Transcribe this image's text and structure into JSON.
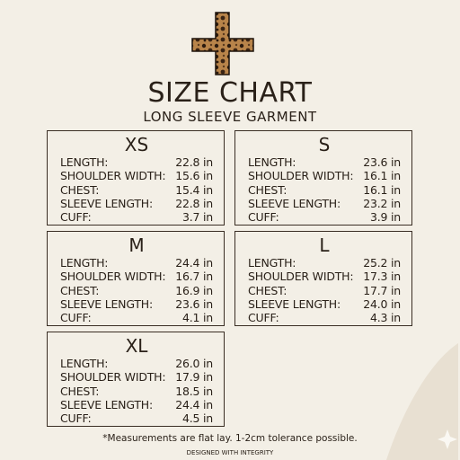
{
  "header": {
    "title": "SIZE CHART",
    "subtitle": "LONG SLEEVE GARMENT"
  },
  "sizes": [
    {
      "name": "XS",
      "rows": [
        {
          "label": "LENGTH:",
          "value": "22.8 in"
        },
        {
          "label": "SHOULDER WIDTH:",
          "value": "15.6 in"
        },
        {
          "label": "CHEST:",
          "value": "15.4 in"
        },
        {
          "label": "SLEEVE LENGTH:",
          "value": "22.8 in"
        },
        {
          "label": "CUFF:",
          "value": "3.7 in"
        }
      ]
    },
    {
      "name": "S",
      "rows": [
        {
          "label": "LENGTH:",
          "value": "23.6 in"
        },
        {
          "label": "SHOULDER WIDTH:",
          "value": "16.1 in"
        },
        {
          "label": "CHEST:",
          "value": "16.1 in"
        },
        {
          "label": "SLEEVE LENGTH:",
          "value": "23.2 in"
        },
        {
          "label": "CUFF:",
          "value": "3.9 in"
        }
      ]
    },
    {
      "name": "M",
      "rows": [
        {
          "label": "LENGTH:",
          "value": "24.4 in"
        },
        {
          "label": "SHOULDER WIDTH:",
          "value": "16.7 in"
        },
        {
          "label": "CHEST:",
          "value": "16.9 in"
        },
        {
          "label": "SLEEVE LENGTH:",
          "value": "23.6 in"
        },
        {
          "label": "CUFF:",
          "value": "4.1 in"
        }
      ]
    },
    {
      "name": "L",
      "rows": [
        {
          "label": "LENGTH:",
          "value": "25.2 in"
        },
        {
          "label": "SHOULDER WIDTH:",
          "value": "17.3 in"
        },
        {
          "label": "CHEST:",
          "value": "17.7 in"
        },
        {
          "label": "SLEEVE LENGTH:",
          "value": "24.0 in"
        },
        {
          "label": "CUFF:",
          "value": "4.3 in"
        }
      ]
    },
    {
      "name": "XL",
      "rows": [
        {
          "label": "LENGTH:",
          "value": "26.0 in"
        },
        {
          "label": "SHOULDER WIDTH:",
          "value": "17.9 in"
        },
        {
          "label": "CHEST:",
          "value": "18.5 in"
        },
        {
          "label": "SLEEVE LENGTH:",
          "value": "24.4 in"
        },
        {
          "label": "CUFF:",
          "value": "4.5 in"
        }
      ]
    }
  ],
  "footer": {
    "note": "*Measurements are flat lay. 1-2cm tolerance possible.",
    "brand": "DESIGNED WITH INTEGRITY"
  }
}
